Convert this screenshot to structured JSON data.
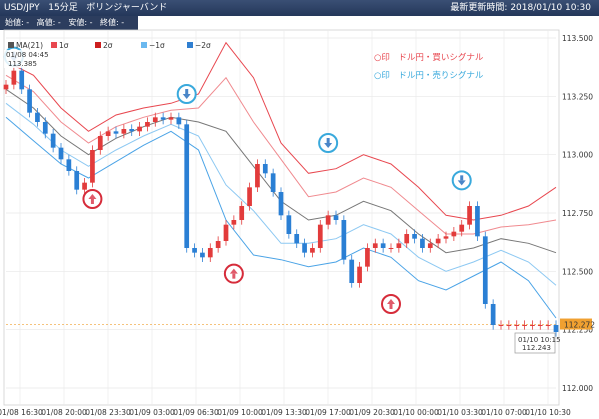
{
  "header": {
    "symbol": "USD/JPY",
    "interval": "15分足",
    "indicator": "ボリンジャーバンド",
    "updated_label": "最新更新時間:",
    "updated_value": "2018/01/10 10:30"
  },
  "ohlc": {
    "open": "始値: -",
    "high": "高値: -",
    "low": "安値: -",
    "close": "終値: -"
  },
  "legend": [
    {
      "name": "MA(21)",
      "color": "#555555"
    },
    {
      "name": "1σ",
      "color": "#e8474f"
    },
    {
      "name": "2σ",
      "color": "#cc1f1f"
    },
    {
      "name": "−1σ",
      "color": "#6ab8ef"
    },
    {
      "name": "−2σ",
      "color": "#2f7fd1"
    }
  ],
  "notes": {
    "buy": {
      "text": "○印　ドル円・買いシグナル",
      "color": "#e8474f"
    },
    "sell": {
      "text": "○印　ドル円・売りシグナル",
      "color": "#39a9dc"
    }
  },
  "labels": {
    "top_left_date": "01/08 04:45",
    "top_left_price": "113.385",
    "current_price": "112.272",
    "current_price_color": "#f0a030",
    "last_date": "01/10 10:15",
    "last_price": "112.243"
  },
  "chart_data": {
    "type": "candlestick",
    "title": "",
    "xlabel": "",
    "ylabel": "",
    "ylim": [
      112.0,
      113.5
    ],
    "y_ticks": [
      "113.500",
      "113.250",
      "113.000",
      "112.750",
      "112.500",
      "112.250",
      "112.000"
    ],
    "x_ticks": [
      "01/08 16:30",
      "01/08 20:00",
      "01/08 23:30",
      "01/09 03:00",
      "01/09 06:30",
      "01/09 10:00",
      "01/09 13:30",
      "01/09 17:00",
      "01/09 20:30",
      "01/10 00:00",
      "01/10 03:30",
      "01/10 07:00",
      "01/10 10:30"
    ],
    "series": [
      {
        "name": "MA(21)",
        "x": [
          0,
          14,
          28,
          42,
          56,
          70,
          84,
          98,
          112,
          126,
          140,
          154,
          168,
          182,
          196,
          210,
          224,
          238,
          252,
          266,
          280
        ],
        "values": [
          113.28,
          113.2,
          113.08,
          113.0,
          113.07,
          113.12,
          113.16,
          113.14,
          113.1,
          112.95,
          112.8,
          112.72,
          112.74,
          112.8,
          112.76,
          112.66,
          112.58,
          112.6,
          112.64,
          112.62,
          112.58
        ]
      },
      {
        "name": "1σ",
        "x": [
          0,
          14,
          28,
          42,
          56,
          70,
          84,
          98,
          112,
          126,
          140,
          154,
          168,
          182,
          196,
          210,
          224,
          238,
          252,
          266,
          280
        ],
        "values": [
          113.34,
          113.27,
          113.14,
          113.05,
          113.12,
          113.16,
          113.19,
          113.2,
          113.33,
          113.14,
          112.98,
          112.82,
          112.84,
          112.9,
          112.86,
          112.76,
          112.66,
          112.66,
          112.69,
          112.7,
          112.72
        ]
      },
      {
        "name": "2σ",
        "x": [
          0,
          14,
          28,
          42,
          56,
          70,
          84,
          98,
          112,
          126,
          140,
          154,
          168,
          182,
          196,
          210,
          224,
          238,
          252,
          266,
          280
        ],
        "values": [
          113.4,
          113.34,
          113.2,
          113.1,
          113.17,
          113.2,
          113.22,
          113.26,
          113.48,
          113.33,
          113.05,
          112.92,
          112.94,
          113.0,
          112.96,
          112.86,
          112.74,
          112.72,
          112.74,
          112.78,
          112.86
        ]
      },
      {
        "name": "−1σ",
        "x": [
          0,
          14,
          28,
          42,
          56,
          70,
          84,
          98,
          112,
          126,
          140,
          154,
          168,
          182,
          196,
          210,
          224,
          238,
          252,
          266,
          280
        ],
        "values": [
          113.22,
          113.13,
          113.02,
          112.95,
          113.02,
          113.08,
          113.13,
          113.08,
          112.87,
          112.76,
          112.62,
          112.62,
          112.64,
          112.7,
          112.66,
          112.56,
          112.5,
          112.54,
          112.59,
          112.54,
          112.44
        ]
      },
      {
        "name": "−2σ",
        "x": [
          0,
          14,
          28,
          42,
          56,
          70,
          84,
          98,
          112,
          126,
          140,
          154,
          168,
          182,
          196,
          210,
          224,
          238,
          252,
          266,
          280
        ],
        "values": [
          113.16,
          113.06,
          112.96,
          112.9,
          112.97,
          113.04,
          113.1,
          113.02,
          112.72,
          112.57,
          112.55,
          112.52,
          112.54,
          112.6,
          112.56,
          112.46,
          112.42,
          112.48,
          112.54,
          112.46,
          112.3
        ]
      },
      {
        "name": "close",
        "x": [
          0,
          4,
          8,
          12,
          16,
          20,
          24,
          28,
          32,
          36,
          40,
          44,
          48,
          52,
          56,
          60,
          64,
          68,
          72,
          76,
          80,
          84,
          88,
          92,
          96,
          100,
          104,
          108,
          112,
          116,
          120,
          124,
          128,
          132,
          136,
          140,
          144,
          148,
          152,
          156,
          160,
          164,
          168,
          172,
          176,
          180,
          184,
          188,
          192,
          196,
          200,
          204,
          208,
          212,
          216,
          220,
          224,
          228,
          232,
          236,
          240,
          244,
          248,
          252,
          256,
          260,
          264,
          268,
          272,
          276,
          280
        ],
        "values": [
          113.3,
          113.36,
          113.28,
          113.18,
          113.14,
          113.09,
          113.03,
          112.98,
          112.93,
          112.85,
          112.88,
          113.02,
          113.08,
          113.1,
          113.09,
          113.11,
          113.1,
          113.12,
          113.14,
          113.16,
          113.15,
          113.16,
          113.13,
          112.6,
          112.58,
          112.56,
          112.6,
          112.63,
          112.7,
          112.72,
          112.78,
          112.86,
          112.96,
          112.92,
          112.84,
          112.74,
          112.66,
          112.62,
          112.58,
          112.6,
          112.7,
          112.74,
          112.72,
          112.55,
          112.45,
          112.52,
          112.6,
          112.62,
          112.6,
          112.6,
          112.62,
          112.66,
          112.64,
          112.6,
          112.62,
          112.64,
          112.65,
          112.67,
          112.7,
          112.78,
          112.65,
          112.36,
          112.27,
          112.27,
          112.27,
          112.27,
          112.27,
          112.27,
          112.27,
          112.27,
          112.24
        ]
      }
    ],
    "signals": [
      {
        "type": "sell",
        "x": 4,
        "price": 113.36
      },
      {
        "type": "buy",
        "x": 44,
        "price": 112.87
      },
      {
        "type": "sell",
        "x": 92,
        "price": 113.2
      },
      {
        "type": "buy",
        "x": 116,
        "price": 112.55
      },
      {
        "type": "sell",
        "x": 164,
        "price": 112.99
      },
      {
        "type": "buy",
        "x": 196,
        "price": 112.42
      },
      {
        "type": "sell",
        "x": 232,
        "price": 112.83
      }
    ]
  }
}
